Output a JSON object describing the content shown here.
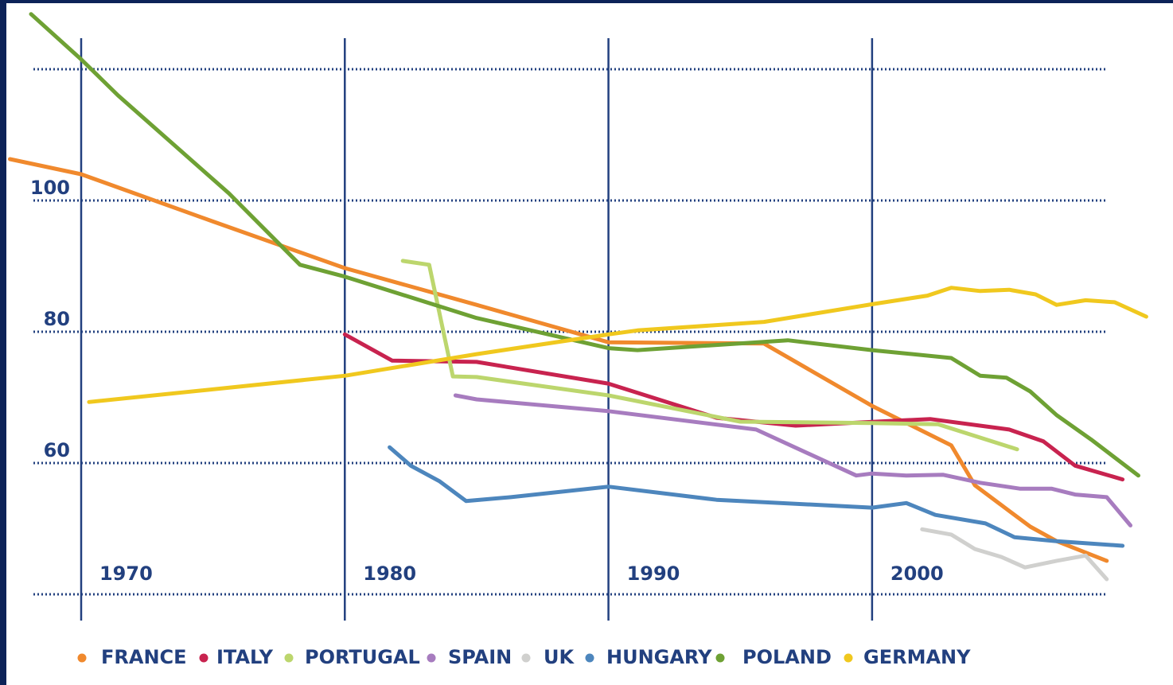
{
  "chart_data": {
    "type": "line",
    "xlim": [
      1967,
      2011
    ],
    "xticks": [
      1970,
      1980,
      1990,
      2000
    ],
    "ylim": [
      40,
      120
    ],
    "yticks": [
      60,
      80,
      100
    ],
    "grid": true,
    "series": [
      {
        "name": "FRANCE",
        "color": "#f0892d",
        "x": [
          1967.3,
          1970,
          1975,
          1980,
          1985,
          1990,
          1995.9,
          2000,
          2003,
          2003.9,
          2004.9,
          2006,
          2007,
          2008.9
        ],
        "values": [
          106.3,
          104,
          96.8,
          89.7,
          84.1,
          78.4,
          78.2,
          68.7,
          62.7,
          56.6,
          53.6,
          50.3,
          48.1,
          45.1
        ]
      },
      {
        "name": "ITALY",
        "color": "#c8234f",
        "x": [
          1980,
          1981.8,
          1985,
          1990,
          1994.1,
          1997.1,
          2002.2,
          2005.2,
          2006.5,
          2007.7,
          2009.5
        ],
        "values": [
          79.6,
          75.6,
          75.4,
          72.1,
          66.9,
          65.7,
          66.7,
          65.1,
          63.3,
          59.6,
          57.5
        ]
      },
      {
        "name": "PORTUGAL",
        "color": "#bcd66d",
        "x": [
          1982.2,
          1983.2,
          1984.1,
          1985,
          1990,
          1995,
          2000,
          2002.5,
          2005.5
        ],
        "values": [
          90.8,
          90.2,
          73.2,
          73.1,
          70.3,
          66.3,
          66.1,
          65.9,
          62.1
        ]
      },
      {
        "name": "SPAIN",
        "color": "#a77cbf",
        "x": [
          1984.2,
          1985,
          1990,
          1995.6,
          1999.4,
          2000,
          2001.3,
          2002.7,
          2004.1,
          2005.6,
          2006.8,
          2007.7,
          2008.9,
          2009.8
        ],
        "values": [
          70.3,
          69.7,
          67.9,
          65.1,
          58.1,
          58.4,
          58.1,
          58.2,
          57,
          56.1,
          56.1,
          55.2,
          54.8,
          50.5
        ]
      },
      {
        "name": "UK",
        "color": "#d0d0ce",
        "x": [
          2001.9,
          2003,
          2003.9,
          2004.9,
          2005.8,
          2007,
          2008.1,
          2008.9
        ],
        "values": [
          49.9,
          49.1,
          46.9,
          45.7,
          44.1,
          45.1,
          45.9,
          42.3
        ]
      },
      {
        "name": "HUNGARY",
        "color": "#4d86bd",
        "x": [
          1981.7,
          1982.5,
          1983.6,
          1984.6,
          1986.3,
          1990,
          1994.1,
          2000,
          2001.3,
          2002.4,
          2004.3,
          2005.4,
          2007,
          2009.5
        ],
        "values": [
          62.4,
          59.6,
          57.2,
          54.2,
          54.8,
          56.4,
          54.4,
          53.2,
          53.9,
          52.1,
          50.8,
          48.7,
          48.1,
          47.4
        ]
      },
      {
        "name": "POLAND",
        "color": "#6ea134",
        "x": [
          1968.1,
          1970,
          1971.4,
          1975.6,
          1978.3,
          1980,
          1985,
          1990,
          1991.1,
          1996.8,
          2000,
          2003,
          2004.1,
          2005.1,
          2006,
          2007,
          2008.3,
          2010.1
        ],
        "values": [
          128.4,
          121.5,
          116,
          101.1,
          90.2,
          88.4,
          82.1,
          77.5,
          77.2,
          78.7,
          77.2,
          76,
          73.3,
          73,
          70.9,
          67.3,
          63.6,
          58.1
        ]
      },
      {
        "name": "GERMANY",
        "color": "#f0c81e",
        "x": [
          1970.3,
          1980,
          1985,
          1990,
          1991.1,
          1995.9,
          2000,
          2002.1,
          2003,
          2004.1,
          2005.2,
          2006.2,
          2007,
          2008.1,
          2009.2,
          2010.4
        ],
        "values": [
          69.3,
          73.3,
          76.6,
          79.6,
          80.2,
          81.5,
          84.2,
          85.5,
          86.7,
          86.2,
          86.4,
          85.7,
          84.1,
          84.8,
          84.5,
          82.3
        ]
      }
    ]
  }
}
